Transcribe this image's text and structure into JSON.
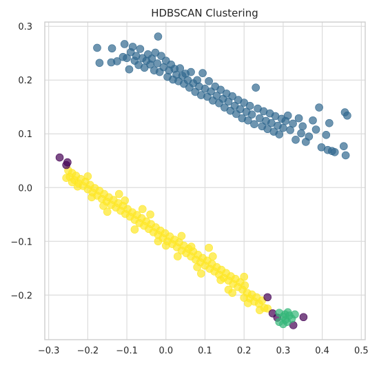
{
  "chart_data": {
    "type": "scatter",
    "title": "HDBSCAN Clustering",
    "xlabel": "",
    "ylabel": "",
    "xlim": [
      -0.31,
      0.51
    ],
    "ylim": [
      -0.283,
      0.308
    ],
    "xticks": [
      "−0.3",
      "−0.2",
      "−0.1",
      "0.0",
      "0.1",
      "0.2",
      "0.3",
      "0.4",
      "0.5"
    ],
    "yticks": [
      "−0.2",
      "−0.1",
      "0.0",
      "0.1",
      "0.2",
      "0.3"
    ],
    "grid": true,
    "legend": "none",
    "colors": {
      "blue": "#31688e",
      "yellow": "#fde725",
      "green": "#35b779",
      "purple": "#440154"
    },
    "series": [
      {
        "color": "blue",
        "opacity": 0.7,
        "description_of_trend": "upper band, y from about 0.24 at x=-0.14 down to 0.10 at x=0.43",
        "points": [
          [
            -0.14,
            0.233
          ],
          [
            -0.138,
            0.259
          ],
          [
            -0.125,
            0.235
          ],
          [
            -0.11,
            0.243
          ],
          [
            -0.106,
            0.267
          ],
          [
            -0.1,
            0.241
          ],
          [
            -0.094,
            0.22
          ],
          [
            -0.09,
            0.252
          ],
          [
            -0.085,
            0.262
          ],
          [
            -0.08,
            0.236
          ],
          [
            -0.076,
            0.245
          ],
          [
            -0.07,
            0.228
          ],
          [
            -0.066,
            0.258
          ],
          [
            -0.06,
            0.241
          ],
          [
            -0.055,
            0.223
          ],
          [
            -0.05,
            0.236
          ],
          [
            -0.046,
            0.248
          ],
          [
            -0.04,
            0.229
          ],
          [
            -0.036,
            0.24
          ],
          [
            -0.03,
            0.218
          ],
          [
            -0.027,
            0.251
          ],
          [
            -0.022,
            0.231
          ],
          [
            -0.02,
            0.281
          ],
          [
            -0.016,
            0.215
          ],
          [
            -0.012,
            0.245
          ],
          [
            -0.006,
            0.224
          ],
          [
            0.0,
            0.236
          ],
          [
            0.004,
            0.206
          ],
          [
            0.008,
            0.218
          ],
          [
            0.013,
            0.229
          ],
          [
            0.018,
            0.201
          ],
          [
            0.022,
            0.221
          ],
          [
            0.027,
            0.21
          ],
          [
            0.032,
            0.198
          ],
          [
            0.036,
            0.222
          ],
          [
            0.042,
            0.208
          ],
          [
            0.046,
            0.193
          ],
          [
            0.05,
            0.212
          ],
          [
            0.056,
            0.2
          ],
          [
            0.06,
            0.186
          ],
          [
            0.064,
            0.215
          ],
          [
            0.07,
            0.194
          ],
          [
            0.075,
            0.178
          ],
          [
            0.08,
            0.2
          ],
          [
            0.085,
            0.188
          ],
          [
            0.09,
            0.172
          ],
          [
            0.094,
            0.213
          ],
          [
            0.1,
            0.184
          ],
          [
            0.106,
            0.169
          ],
          [
            0.11,
            0.198
          ],
          [
            0.115,
            0.179
          ],
          [
            0.12,
            0.162
          ],
          [
            0.126,
            0.188
          ],
          [
            0.13,
            0.171
          ],
          [
            0.136,
            0.157
          ],
          [
            0.14,
            0.182
          ],
          [
            0.146,
            0.165
          ],
          [
            0.15,
            0.149
          ],
          [
            0.155,
            0.175
          ],
          [
            0.16,
            0.16
          ],
          [
            0.165,
            0.143
          ],
          [
            0.17,
            0.17
          ],
          [
            0.176,
            0.152
          ],
          [
            0.18,
            0.137
          ],
          [
            0.185,
            0.163
          ],
          [
            0.19,
            0.146
          ],
          [
            0.195,
            0.129
          ],
          [
            0.2,
            0.158
          ],
          [
            0.206,
            0.141
          ],
          [
            0.21,
            0.125
          ],
          [
            0.215,
            0.152
          ],
          [
            0.22,
            0.136
          ],
          [
            0.226,
            0.118
          ],
          [
            0.23,
            0.186
          ],
          [
            0.235,
            0.147
          ],
          [
            0.24,
            0.129
          ],
          [
            0.246,
            0.114
          ],
          [
            0.25,
            0.142
          ],
          [
            0.256,
            0.124
          ],
          [
            0.26,
            0.109
          ],
          [
            0.266,
            0.138
          ],
          [
            0.27,
            0.12
          ],
          [
            0.276,
            0.104
          ],
          [
            0.28,
            0.133
          ],
          [
            0.286,
            0.115
          ],
          [
            0.29,
            0.099
          ],
          [
            0.296,
            0.128
          ],
          [
            0.3,
            0.111
          ],
          [
            0.306,
            0.124
          ],
          [
            0.312,
            0.134
          ],
          [
            0.318,
            0.107
          ],
          [
            0.325,
            0.119
          ],
          [
            0.332,
            0.089
          ],
          [
            0.34,
            0.129
          ],
          [
            0.346,
            0.101
          ],
          [
            0.35,
            0.114
          ],
          [
            0.358,
            0.085
          ],
          [
            0.366,
            0.095
          ],
          [
            0.376,
            0.125
          ],
          [
            0.384,
            0.108
          ],
          [
            0.392,
            0.149
          ],
          [
            0.398,
            0.075
          ],
          [
            0.41,
            0.098
          ],
          [
            0.414,
            0.07
          ],
          [
            0.418,
            0.12
          ],
          [
            0.425,
            0.068
          ],
          [
            0.432,
            0.066
          ],
          [
            0.455,
            0.077
          ],
          [
            0.458,
            0.14
          ],
          [
            0.464,
            0.134
          ],
          [
            0.46,
            0.06
          ],
          [
            -0.176,
            0.26
          ],
          [
            -0.17,
            0.232
          ]
        ]
      },
      {
        "color": "yellow",
        "opacity": 0.7,
        "description_of_trend": "lower dense band, y from about 0.03 at x=-0.25 down to -0.22 at x=0.26",
        "points": [
          [
            -0.25,
            0.032
          ],
          [
            -0.246,
            0.02
          ],
          [
            -0.24,
            0.027
          ],
          [
            -0.234,
            0.014
          ],
          [
            -0.23,
            0.022
          ],
          [
            -0.224,
            0.008
          ],
          [
            -0.218,
            0.016
          ],
          [
            -0.212,
            0.003
          ],
          [
            -0.206,
            0.011
          ],
          [
            -0.2,
            -0.003
          ],
          [
            -0.194,
            0.005
          ],
          [
            -0.188,
            -0.009
          ],
          [
            -0.182,
            -0.001
          ],
          [
            -0.176,
            -0.015
          ],
          [
            -0.17,
            -0.006
          ],
          [
            -0.164,
            -0.021
          ],
          [
            -0.158,
            -0.012
          ],
          [
            -0.152,
            -0.026
          ],
          [
            -0.146,
            -0.018
          ],
          [
            -0.14,
            -0.032
          ],
          [
            -0.134,
            -0.023
          ],
          [
            -0.128,
            -0.037
          ],
          [
            -0.122,
            -0.029
          ],
          [
            -0.116,
            -0.043
          ],
          [
            -0.11,
            -0.034
          ],
          [
            -0.104,
            -0.049
          ],
          [
            -0.098,
            -0.04
          ],
          [
            -0.092,
            -0.054
          ],
          [
            -0.086,
            -0.046
          ],
          [
            -0.08,
            -0.06
          ],
          [
            -0.074,
            -0.051
          ],
          [
            -0.068,
            -0.066
          ],
          [
            -0.062,
            -0.057
          ],
          [
            -0.056,
            -0.071
          ],
          [
            -0.05,
            -0.063
          ],
          [
            -0.044,
            -0.077
          ],
          [
            -0.038,
            -0.068
          ],
          [
            -0.032,
            -0.083
          ],
          [
            -0.026,
            -0.074
          ],
          [
            -0.02,
            -0.088
          ],
          [
            -0.014,
            -0.08
          ],
          [
            -0.008,
            -0.094
          ],
          [
            -0.002,
            -0.085
          ],
          [
            0.004,
            -0.1
          ],
          [
            0.01,
            -0.091
          ],
          [
            0.016,
            -0.105
          ],
          [
            0.022,
            -0.097
          ],
          [
            0.028,
            -0.111
          ],
          [
            0.034,
            -0.102
          ],
          [
            0.04,
            -0.117
          ],
          [
            0.046,
            -0.108
          ],
          [
            0.052,
            -0.122
          ],
          [
            0.058,
            -0.114
          ],
          [
            0.064,
            -0.128
          ],
          [
            0.07,
            -0.119
          ],
          [
            0.076,
            -0.134
          ],
          [
            0.082,
            -0.125
          ],
          [
            0.088,
            -0.139
          ],
          [
            0.094,
            -0.131
          ],
          [
            0.1,
            -0.145
          ],
          [
            0.106,
            -0.136
          ],
          [
            0.112,
            -0.151
          ],
          [
            0.118,
            -0.142
          ],
          [
            0.124,
            -0.156
          ],
          [
            0.13,
            -0.148
          ],
          [
            0.136,
            -0.162
          ],
          [
            0.142,
            -0.153
          ],
          [
            0.148,
            -0.168
          ],
          [
            0.154,
            -0.159
          ],
          [
            0.16,
            -0.173
          ],
          [
            0.166,
            -0.165
          ],
          [
            0.172,
            -0.179
          ],
          [
            0.178,
            -0.17
          ],
          [
            0.184,
            -0.185
          ],
          [
            0.19,
            -0.176
          ],
          [
            0.196,
            -0.19
          ],
          [
            0.202,
            -0.182
          ],
          [
            0.208,
            -0.196
          ],
          [
            0.214,
            -0.206
          ],
          [
            0.22,
            -0.199
          ],
          [
            0.226,
            -0.212
          ],
          [
            0.232,
            -0.204
          ],
          [
            0.238,
            -0.216
          ],
          [
            0.246,
            -0.21
          ],
          [
            0.252,
            -0.224
          ],
          [
            0.26,
            -0.225
          ],
          [
            -0.226,
            0.002
          ],
          [
            -0.2,
            0.021
          ],
          [
            -0.16,
            -0.034
          ],
          [
            -0.12,
            -0.012
          ],
          [
            -0.08,
            -0.078
          ],
          [
            -0.04,
            -0.05
          ],
          [
            0.0,
            -0.108
          ],
          [
            0.04,
            -0.09
          ],
          [
            0.08,
            -0.148
          ],
          [
            0.12,
            -0.128
          ],
          [
            0.16,
            -0.19
          ],
          [
            0.2,
            -0.166
          ],
          [
            -0.24,
            0.01
          ],
          [
            -0.105,
            -0.024
          ],
          [
            0.03,
            -0.128
          ],
          [
            0.17,
            -0.196
          ],
          [
            0.11,
            -0.112
          ],
          [
            -0.02,
            -0.1
          ],
          [
            -0.15,
            -0.045
          ],
          [
            0.21,
            -0.215
          ],
          [
            -0.255,
            0.018
          ],
          [
            0.065,
            -0.11
          ],
          [
            0.14,
            -0.172
          ],
          [
            0.2,
            -0.205
          ],
          [
            0.24,
            -0.228
          ],
          [
            -0.19,
            -0.018
          ],
          [
            -0.06,
            -0.04
          ],
          [
            0.09,
            -0.16
          ]
        ]
      },
      {
        "color": "purple",
        "opacity": 0.7,
        "description_of_trend": "scattered noise points",
        "points": [
          [
            -0.272,
            0.056
          ],
          [
            -0.252,
            0.047
          ],
          [
            -0.255,
            0.042
          ],
          [
            0.26,
            -0.204
          ],
          [
            0.273,
            -0.234
          ],
          [
            0.285,
            -0.242
          ],
          [
            0.326,
            -0.256
          ],
          [
            0.352,
            -0.241
          ]
        ]
      },
      {
        "color": "green",
        "opacity": 0.7,
        "description_of_trend": "small cluster near x=0.31, y=-0.24",
        "points": [
          [
            0.29,
            -0.233
          ],
          [
            0.3,
            -0.24
          ],
          [
            0.306,
            -0.246
          ],
          [
            0.312,
            -0.232
          ],
          [
            0.316,
            -0.238
          ],
          [
            0.3,
            -0.254
          ],
          [
            0.322,
            -0.244
          ],
          [
            0.31,
            -0.25
          ],
          [
            0.33,
            -0.236
          ],
          [
            0.29,
            -0.25
          ],
          [
            0.305,
            -0.236
          ]
        ]
      }
    ]
  }
}
